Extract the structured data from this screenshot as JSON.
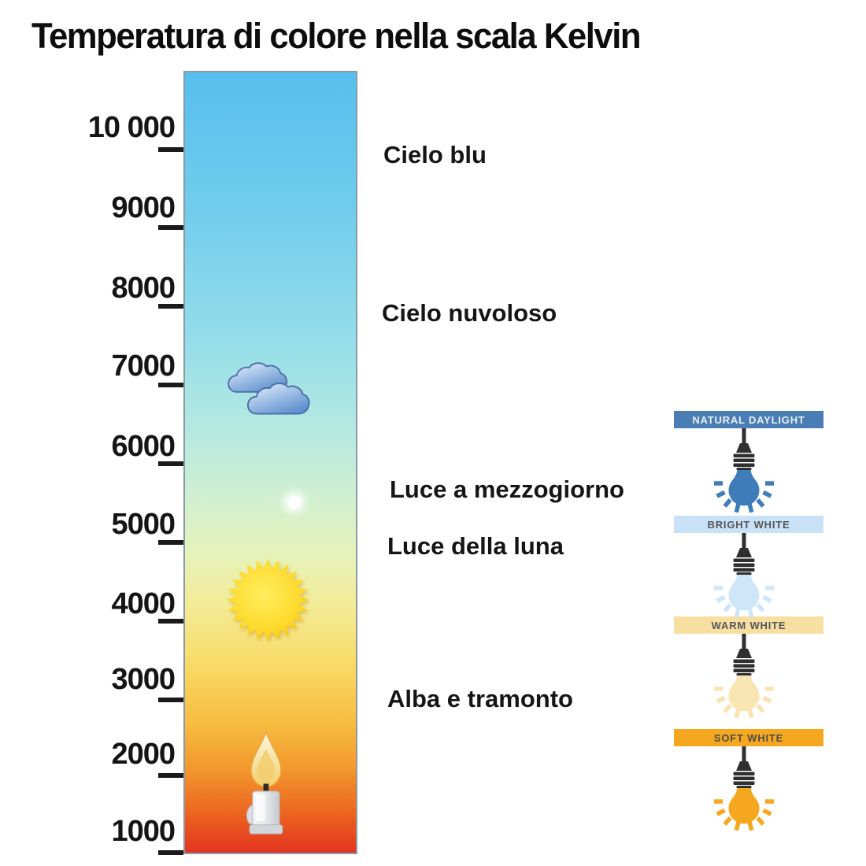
{
  "title": "Temperatura di colore nella scala Kelvin",
  "scale": {
    "unit": "Kelvin",
    "ticks": [
      {
        "label": "10 000",
        "value": 10000
      },
      {
        "label": "9000",
        "value": 9000
      },
      {
        "label": "8000",
        "value": 8000
      },
      {
        "label": "7000",
        "value": 7000
      },
      {
        "label": "6000",
        "value": 6000
      },
      {
        "label": "5000",
        "value": 5000
      },
      {
        "label": "4000",
        "value": 4000
      },
      {
        "label": "3000",
        "value": 3000
      },
      {
        "label": "2000",
        "value": 2000
      },
      {
        "label": "1000",
        "value": 1000
      }
    ],
    "gradient_top_color": "#56bfee",
    "gradient_middle_color": "#f4ea93",
    "gradient_bottom_color": "#e23420"
  },
  "zones": [
    {
      "label": "Cielo blu",
      "approx_kelvin": 9900
    },
    {
      "label": "Cielo nuvoloso",
      "approx_kelvin": 7900
    },
    {
      "label": "Luce a mezzogiorno",
      "approx_kelvin": 5600
    },
    {
      "label": "Luce della luna",
      "approx_kelvin": 4900
    },
    {
      "label": "Alba e tramonto",
      "approx_kelvin": 3000
    }
  ],
  "bar_annotations": [
    {
      "icon": "clouds-icon",
      "approx_kelvin": 6800
    },
    {
      "icon": "moon-glow-icon",
      "approx_kelvin": 5500
    },
    {
      "icon": "sun-icon",
      "approx_kelvin": 4300
    },
    {
      "icon": "candle-icon",
      "approx_kelvin": 1700
    }
  ],
  "panel": {
    "items": [
      {
        "label": "NATURAL DAYLIGHT",
        "bar_color": "#4a7db3",
        "text_color": "#e9eff5",
        "bulb_color": "#3e7cba"
      },
      {
        "label": "BRIGHT WHITE",
        "bar_color": "#c9e2f7",
        "text_color": "#55565a",
        "bulb_color": "#cfe6f8"
      },
      {
        "label": "WARM WHITE",
        "bar_color": "#f6dfa0",
        "text_color": "#55565a",
        "bulb_color": "#f8e5b2"
      },
      {
        "label": "SOFT WHITE",
        "bar_color": "#f5a81f",
        "text_color": "#4c4c4c",
        "bulb_color": "#f5a81f"
      }
    ]
  }
}
